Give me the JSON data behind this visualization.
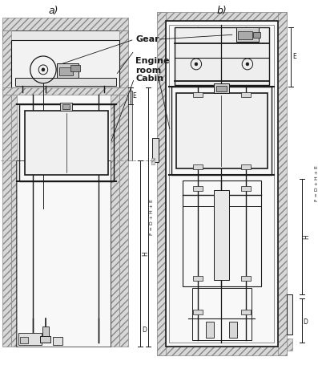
{
  "title_a": "a)",
  "title_b": "b)",
  "label_gear": "Gear",
  "label_engine": "Engine\nroom",
  "label_cabin": "Cabin",
  "dim_E": "E",
  "dim_H": "H",
  "dim_D": "D",
  "dim_F": "F = D + H + E",
  "bg_color": "#ffffff",
  "line_color": "#1a1a1a",
  "hatch_fc": "#d8d8d8",
  "shaft_fc": "#f5f5f5"
}
